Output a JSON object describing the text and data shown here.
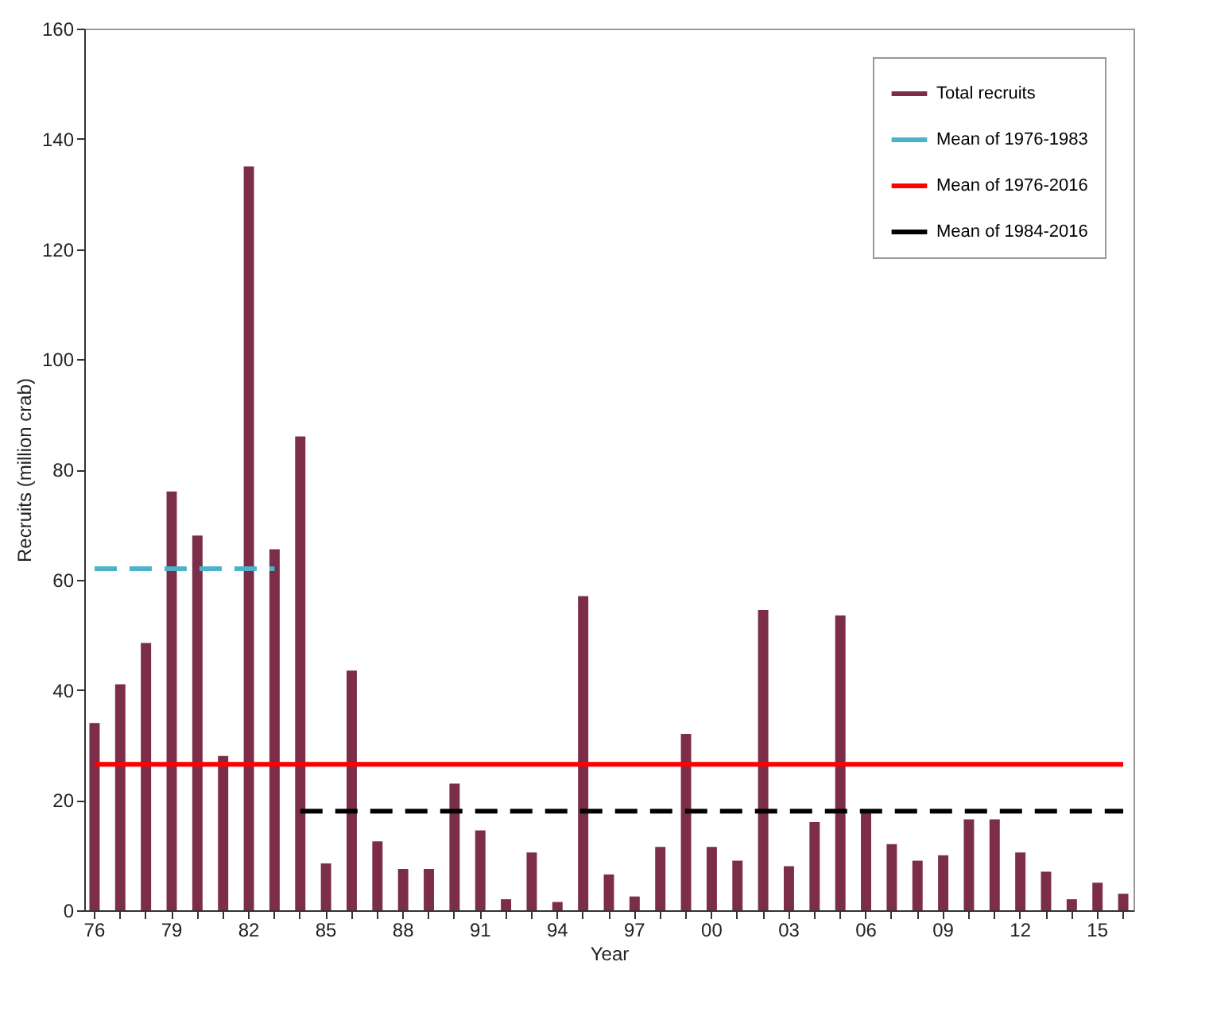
{
  "chart_data": {
    "type": "bar",
    "xlabel": "Year",
    "ylabel": "Recruits (million crab)",
    "categories": [
      "76",
      null,
      null,
      "79",
      null,
      null,
      "82",
      null,
      null,
      "85",
      null,
      null,
      "88",
      null,
      null,
      "91",
      null,
      null,
      "94",
      null,
      null,
      "97",
      null,
      null,
      "00",
      null,
      null,
      "03",
      null,
      null,
      "06",
      null,
      null,
      "09",
      null,
      null,
      "12",
      null,
      null,
      "15",
      null
    ],
    "series": [
      {
        "name": "Total recruits",
        "color": "#7b2d4a",
        "values": [
          34,
          41,
          48.5,
          76,
          68,
          28,
          135,
          65.5,
          86,
          8.5,
          43.5,
          12.5,
          7.5,
          7.5,
          23,
          14.5,
          2,
          10.5,
          1.5,
          57,
          6.5,
          2.5,
          11.5,
          32,
          11.5,
          9,
          54.5,
          8,
          16,
          53.5,
          18,
          12,
          9,
          10,
          16.5,
          16.5,
          10.5,
          7,
          2,
          5,
          3
        ]
      },
      {
        "name": "Mean of 1976-1983",
        "type": "line",
        "line_style": "dashed",
        "color": "#4ab3c8",
        "values": [
          62,
          62,
          62,
          62,
          62,
          62,
          62,
          62,
          null,
          null,
          null,
          null,
          null,
          null,
          null,
          null,
          null,
          null,
          null,
          null,
          null,
          null,
          null,
          null,
          null,
          null,
          null,
          null,
          null,
          null,
          null,
          null,
          null,
          null,
          null,
          null,
          null,
          null,
          null,
          null,
          null
        ]
      },
      {
        "name": "Mean of 1976-2016",
        "type": "line",
        "line_style": "solid",
        "color": "#ff0000",
        "values": [
          26.5,
          26.5,
          26.5,
          26.5,
          26.5,
          26.5,
          26.5,
          26.5,
          26.5,
          26.5,
          26.5,
          26.5,
          26.5,
          26.5,
          26.5,
          26.5,
          26.5,
          26.5,
          26.5,
          26.5,
          26.5,
          26.5,
          26.5,
          26.5,
          26.5,
          26.5,
          26.5,
          26.5,
          26.5,
          26.5,
          26.5,
          26.5,
          26.5,
          26.5,
          26.5,
          26.5,
          26.5,
          26.5,
          26.5,
          26.5,
          26.5
        ]
      },
      {
        "name": "Mean of 1984-2016",
        "type": "line",
        "line_style": "dashed",
        "color": "#000000",
        "values": [
          null,
          null,
          null,
          null,
          null,
          null,
          null,
          null,
          18,
          18,
          18,
          18,
          18,
          18,
          18,
          18,
          18,
          18,
          18,
          18,
          18,
          18,
          18,
          18,
          18,
          18,
          18,
          18,
          18,
          18,
          18,
          18,
          18,
          18,
          18,
          18,
          18,
          18,
          18,
          18,
          18
        ]
      }
    ],
    "ylim": [
      0,
      160
    ],
    "yticks": [
      0,
      20,
      40,
      60,
      80,
      100,
      120,
      140,
      160
    ],
    "grid": false,
    "legend": "top right"
  }
}
